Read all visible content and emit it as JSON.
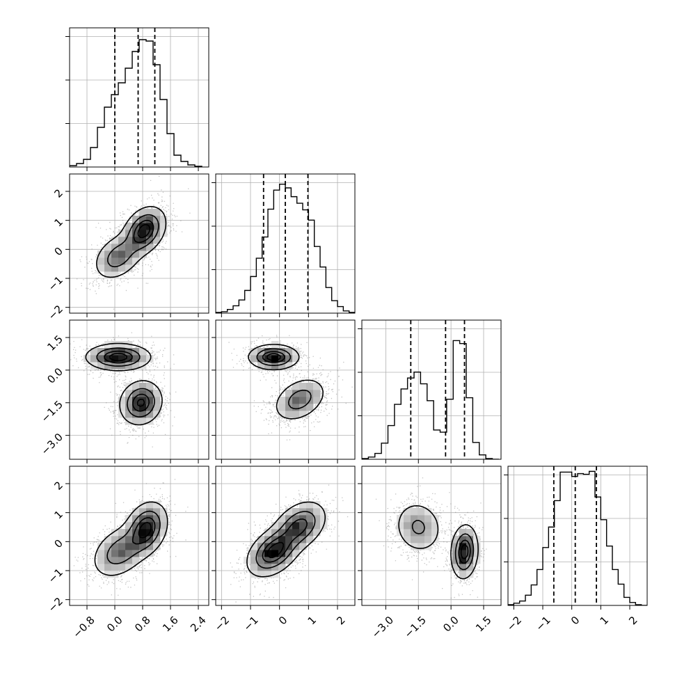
{
  "chart_data": {
    "type": "corner",
    "params": [
      {
        "range": [
          -1.3,
          2.7
        ],
        "ticks": [
          -0.8,
          0.0,
          0.8,
          1.6,
          2.4
        ],
        "tick_labels": [
          "−0.8",
          "0.0",
          "0.8",
          "1.6",
          "2.4"
        ],
        "quantiles": [
          0.0,
          0.67,
          1.15
        ],
        "hist_edges": [
          -1.3,
          -1.1,
          -0.9,
          -0.7,
          -0.5,
          -0.3,
          -0.1,
          0.1,
          0.3,
          0.5,
          0.7,
          0.9,
          1.1,
          1.3,
          1.5,
          1.7,
          1.9,
          2.1,
          2.3,
          2.5
        ],
        "hist_counts": [
          2,
          5,
          11,
          28,
          57,
          86,
          104,
          121,
          142,
          166,
          183,
          181,
          147,
          97,
          48,
          17,
          8,
          3,
          1
        ],
        "hist_ylim": [
          0,
          200
        ]
      },
      {
        "range": [
          -2.2,
          2.6
        ],
        "ticks": [
          -2,
          -1,
          0,
          1,
          2
        ],
        "tick_labels": [
          "−2",
          "−1",
          "0",
          "1",
          "2"
        ],
        "quantiles": [
          -0.55,
          0.2,
          0.98
        ],
        "hist_edges": [
          -2.2,
          -2.0,
          -1.8,
          -1.6,
          -1.4,
          -1.2,
          -1.0,
          -0.8,
          -0.6,
          -0.4,
          -0.2,
          0.0,
          0.2,
          0.4,
          0.6,
          0.8,
          1.0,
          1.2,
          1.4,
          1.6,
          1.8,
          2.0,
          2.2,
          2.4,
          2.6
        ],
        "hist_counts": [
          1,
          2,
          5,
          10,
          18,
          31,
          50,
          75,
          104,
          142,
          168,
          176,
          171,
          159,
          150,
          141,
          127,
          91,
          63,
          35,
          17,
          9,
          3,
          1
        ],
        "hist_ylim": [
          0,
          190
        ]
      },
      {
        "range": [
          -4.1,
          2.3
        ],
        "ticks": [
          -3.0,
          -1.5,
          0.0,
          1.5
        ],
        "tick_labels": [
          "−3.0",
          "−1.5",
          "0.0",
          "1.5"
        ],
        "quantiles": [
          -1.85,
          -0.25,
          0.62
        ],
        "hist_edges": [
          -4.1,
          -3.8,
          -3.5,
          -3.2,
          -2.9,
          -2.6,
          -2.3,
          -2.0,
          -1.7,
          -1.4,
          -1.1,
          -0.8,
          -0.5,
          -0.2,
          0.1,
          0.4,
          0.7,
          1.0,
          1.3,
          1.6,
          1.9,
          2.2
        ],
        "hist_counts": [
          1,
          3,
          8,
          22,
          46,
          75,
          96,
          111,
          119,
          103,
          80,
          40,
          37,
          82,
          162,
          158,
          84,
          23,
          6,
          1,
          0
        ],
        "hist_ylim": [
          0,
          190
        ]
      },
      {
        "range": [
          -2.2,
          2.6
        ],
        "ticks": [
          -2,
          -1,
          0,
          1,
          2
        ],
        "tick_labels": [
          "−2",
          "−1",
          "0",
          "1",
          "2"
        ],
        "quantiles": [
          -0.62,
          0.12,
          0.85
        ],
        "hist_edges": [
          -2.2,
          -2.0,
          -1.8,
          -1.6,
          -1.4,
          -1.2,
          -1.0,
          -0.8,
          -0.6,
          -0.4,
          -0.2,
          0.0,
          0.2,
          0.4,
          0.6,
          0.8,
          1.0,
          1.2,
          1.4,
          1.6,
          1.8,
          2.0,
          2.2,
          2.4,
          2.6
        ],
        "hist_counts": [
          1,
          3,
          6,
          14,
          28,
          49,
          79,
          107,
          143,
          182,
          182,
          176,
          180,
          179,
          183,
          148,
          117,
          81,
          49,
          29,
          11,
          4,
          1,
          0
        ],
        "hist_ylim": [
          0,
          190
        ]
      }
    ],
    "pairs": [
      {
        "row": 1,
        "col": 0,
        "modes": [
          {
            "mx": 0.1,
            "my": -0.25,
            "sx": 0.35,
            "sy": 0.4,
            "rho": 0.35,
            "w": 0.4
          },
          {
            "mx": 0.85,
            "my": 0.65,
            "sx": 0.3,
            "sy": 0.4,
            "rho": 0.3,
            "w": 0.6
          }
        ]
      },
      {
        "row": 2,
        "col": 0,
        "modes": [
          {
            "mx": 0.1,
            "my": 0.6,
            "sx": 0.45,
            "sy": 0.3,
            "rho": 0.0,
            "w": 0.5
          },
          {
            "mx": 0.75,
            "my": -1.5,
            "sx": 0.3,
            "sy": 0.5,
            "rho": 0.1,
            "w": 0.5
          }
        ]
      },
      {
        "row": 2,
        "col": 1,
        "modes": [
          {
            "mx": -0.2,
            "my": 0.6,
            "sx": 0.42,
            "sy": 0.28,
            "rho": 0.0,
            "w": 0.5
          },
          {
            "mx": 0.7,
            "my": -1.35,
            "sx": 0.45,
            "sy": 0.5,
            "rho": 0.35,
            "w": 0.5
          }
        ]
      },
      {
        "row": 3,
        "col": 0,
        "modes": [
          {
            "mx": 0.15,
            "my": -0.35,
            "sx": 0.4,
            "sy": 0.45,
            "rho": 0.35,
            "w": 0.45
          },
          {
            "mx": 0.9,
            "my": 0.45,
            "sx": 0.3,
            "sy": 0.45,
            "rho": 0.25,
            "w": 0.55
          }
        ]
      },
      {
        "row": 3,
        "col": 1,
        "modes": [
          {
            "mx": -0.2,
            "my": -0.35,
            "sx": 0.45,
            "sy": 0.42,
            "rho": 0.4,
            "w": 0.55
          },
          {
            "mx": 0.7,
            "my": 0.55,
            "sx": 0.45,
            "sy": 0.42,
            "rho": 0.35,
            "w": 0.45
          }
        ]
      },
      {
        "row": 3,
        "col": 2,
        "modes": [
          {
            "mx": -1.5,
            "my": 0.5,
            "sx": 0.55,
            "sy": 0.45,
            "rho": -0.1,
            "w": 0.45
          },
          {
            "mx": 0.62,
            "my": -0.35,
            "sx": 0.3,
            "sy": 0.45,
            "rho": 0.1,
            "w": 0.55
          }
        ]
      }
    ],
    "contour_levels": [
      0.118,
      0.393,
      0.675,
      0.865
    ],
    "grid": true
  }
}
